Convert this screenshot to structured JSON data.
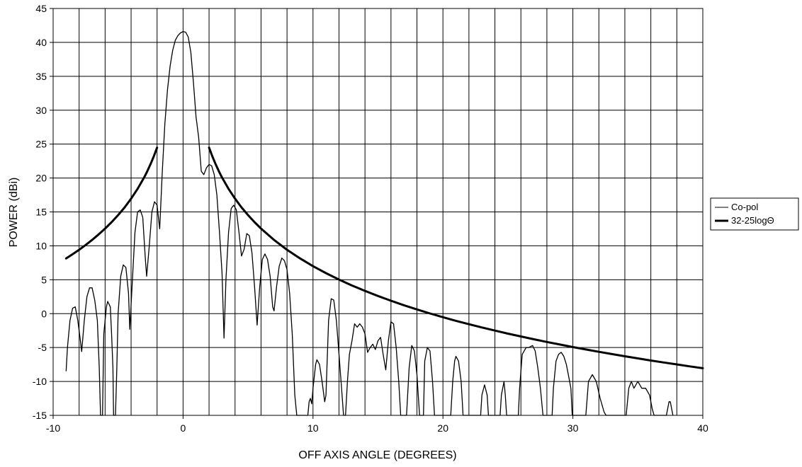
{
  "chart_data": {
    "type": "line",
    "title": "",
    "xlabel": "OFF AXIS ANGLE (DEGREES)",
    "ylabel": "POWER (dBi)",
    "xlim": [
      -10,
      40
    ],
    "ylim": [
      -15,
      45
    ],
    "x_ticks": [
      -10,
      0,
      10,
      20,
      30,
      40
    ],
    "y_ticks": [
      -15,
      -10,
      -5,
      0,
      5,
      10,
      15,
      20,
      25,
      30,
      35,
      40,
      45
    ],
    "x_gridlines": [
      -10,
      -8,
      -6,
      -4,
      -2,
      0,
      2,
      4,
      6,
      8,
      10,
      12,
      14,
      16,
      18,
      20,
      22,
      24,
      26,
      28,
      30,
      32,
      34,
      36,
      38,
      40
    ],
    "grid": true,
    "legend_position": "right",
    "series": [
      {
        "name": "Co-pol",
        "style": "thin",
        "color": "#000000",
        "points": [
          [
            -9.0,
            -8.5
          ],
          [
            -8.9,
            -5
          ],
          [
            -8.7,
            -1
          ],
          [
            -8.5,
            0.8
          ],
          [
            -8.3,
            1.0
          ],
          [
            -8.1,
            -1
          ],
          [
            -7.9,
            -4
          ],
          [
            -7.8,
            -5.6
          ],
          [
            -7.6,
            -1
          ],
          [
            -7.4,
            2.5
          ],
          [
            -7.2,
            3.8
          ],
          [
            -7.0,
            3.8
          ],
          [
            -6.8,
            2.0
          ],
          [
            -6.6,
            -1
          ],
          [
            -6.45,
            -8
          ],
          [
            -6.35,
            -15
          ],
          [
            -6.2,
            -15
          ],
          [
            -6.1,
            -3
          ],
          [
            -5.9,
            1.0
          ],
          [
            -5.8,
            1.8
          ],
          [
            -5.6,
            1.0
          ],
          [
            -5.5,
            -3
          ],
          [
            -5.4,
            -8
          ],
          [
            -5.35,
            -15
          ],
          [
            -5.2,
            -15
          ],
          [
            -5.1,
            -8
          ],
          [
            -5.0,
            0
          ],
          [
            -4.8,
            5.5
          ],
          [
            -4.6,
            7.2
          ],
          [
            -4.4,
            6.8
          ],
          [
            -4.2,
            3.0
          ],
          [
            -4.1,
            -2.3
          ],
          [
            -3.9,
            5
          ],
          [
            -3.7,
            12
          ],
          [
            -3.5,
            15.0
          ],
          [
            -3.3,
            15.3
          ],
          [
            -3.1,
            14.2
          ],
          [
            -2.9,
            8
          ],
          [
            -2.8,
            5.5
          ],
          [
            -2.6,
            10
          ],
          [
            -2.4,
            15
          ],
          [
            -2.2,
            16.5
          ],
          [
            -2.0,
            16.0
          ],
          [
            -1.8,
            12.5
          ],
          [
            -1.6,
            21
          ],
          [
            -1.4,
            28
          ],
          [
            -1.2,
            33
          ],
          [
            -1.0,
            36.5
          ],
          [
            -0.8,
            38.8
          ],
          [
            -0.6,
            40.3
          ],
          [
            -0.4,
            41.0
          ],
          [
            -0.2,
            41.4
          ],
          [
            0,
            41.6
          ],
          [
            0.2,
            41.5
          ],
          [
            0.4,
            40.8
          ],
          [
            0.6,
            38.5
          ],
          [
            0.8,
            34
          ],
          [
            1.0,
            29
          ],
          [
            1.2,
            26
          ],
          [
            1.4,
            21
          ],
          [
            1.6,
            20.5
          ],
          [
            1.8,
            21.5
          ],
          [
            2.0,
            22.0
          ],
          [
            2.2,
            21.8
          ],
          [
            2.4,
            20.5
          ],
          [
            2.6,
            17.5
          ],
          [
            2.8,
            12
          ],
          [
            3.0,
            6
          ],
          [
            3.15,
            -3.6
          ],
          [
            3.3,
            5
          ],
          [
            3.5,
            12
          ],
          [
            3.7,
            15.5
          ],
          [
            3.9,
            16.0
          ],
          [
            4.1,
            15.3
          ],
          [
            4.3,
            12
          ],
          [
            4.5,
            8.5
          ],
          [
            4.7,
            9.5
          ],
          [
            4.9,
            11.8
          ],
          [
            5.1,
            11.5
          ],
          [
            5.3,
            9
          ],
          [
            5.5,
            4
          ],
          [
            5.7,
            -1.7
          ],
          [
            5.9,
            4
          ],
          [
            6.1,
            8
          ],
          [
            6.3,
            8.8
          ],
          [
            6.5,
            8.0
          ],
          [
            6.7,
            5.5
          ],
          [
            6.9,
            1
          ],
          [
            7.0,
            0.4
          ],
          [
            7.2,
            4
          ],
          [
            7.4,
            7
          ],
          [
            7.6,
            8.2
          ],
          [
            7.8,
            7.8
          ],
          [
            8.0,
            6.5
          ],
          [
            8.2,
            3
          ],
          [
            8.4,
            -3
          ],
          [
            8.6,
            -12
          ],
          [
            8.75,
            -15
          ],
          [
            9.6,
            -15
          ],
          [
            9.7,
            -13
          ],
          [
            9.8,
            -12.5
          ],
          [
            9.9,
            -13.3
          ],
          [
            10.0,
            -11
          ],
          [
            10.2,
            -7.5
          ],
          [
            10.3,
            -6.8
          ],
          [
            10.5,
            -7.5
          ],
          [
            10.7,
            -10
          ],
          [
            10.9,
            -13
          ],
          [
            11.0,
            -12
          ],
          [
            11.2,
            -1
          ],
          [
            11.4,
            2.2
          ],
          [
            11.6,
            2.0
          ],
          [
            11.8,
            -1
          ],
          [
            12.0,
            -6
          ],
          [
            12.2,
            -11
          ],
          [
            12.35,
            -15
          ],
          [
            12.5,
            -15
          ],
          [
            12.65,
            -10
          ],
          [
            12.8,
            -6
          ],
          [
            13.0,
            -4
          ],
          [
            13.2,
            -1.5
          ],
          [
            13.4,
            -2.0
          ],
          [
            13.6,
            -1.5
          ],
          [
            13.8,
            -2.0
          ],
          [
            14.0,
            -3
          ],
          [
            14.2,
            -5.7
          ],
          [
            14.4,
            -5
          ],
          [
            14.6,
            -4.5
          ],
          [
            14.8,
            -5.3
          ],
          [
            15.0,
            -4
          ],
          [
            15.2,
            -3.5
          ],
          [
            15.4,
            -6
          ],
          [
            15.6,
            -8.3
          ],
          [
            15.8,
            -4
          ],
          [
            16.0,
            -1.2
          ],
          [
            16.2,
            -1.5
          ],
          [
            16.4,
            -5
          ],
          [
            16.6,
            -10
          ],
          [
            16.75,
            -15
          ],
          [
            17.2,
            -15
          ],
          [
            17.4,
            -8
          ],
          [
            17.6,
            -4.7
          ],
          [
            17.8,
            -5.5
          ],
          [
            18.0,
            -9
          ],
          [
            18.2,
            -15
          ],
          [
            18.5,
            -15
          ],
          [
            18.6,
            -7
          ],
          [
            18.8,
            -5
          ],
          [
            19.0,
            -5.5
          ],
          [
            19.2,
            -10
          ],
          [
            19.35,
            -15
          ],
          [
            20.6,
            -15
          ],
          [
            20.75,
            -10
          ],
          [
            20.9,
            -7
          ],
          [
            21.0,
            -6.3
          ],
          [
            21.2,
            -7
          ],
          [
            21.4,
            -10
          ],
          [
            21.55,
            -15
          ],
          [
            22.9,
            -15
          ],
          [
            23.0,
            -12
          ],
          [
            23.2,
            -10.5
          ],
          [
            23.4,
            -12
          ],
          [
            23.5,
            -15
          ],
          [
            24.4,
            -15
          ],
          [
            24.5,
            -12
          ],
          [
            24.7,
            -10
          ],
          [
            24.8,
            -12
          ],
          [
            24.9,
            -15
          ],
          [
            25.8,
            -15
          ],
          [
            25.9,
            -11
          ],
          [
            26.1,
            -6
          ],
          [
            26.4,
            -5
          ],
          [
            26.6,
            -5
          ],
          [
            26.9,
            -4.7
          ],
          [
            27.1,
            -5.5
          ],
          [
            27.3,
            -8
          ],
          [
            27.5,
            -11
          ],
          [
            27.7,
            -15
          ],
          [
            28.4,
            -15
          ],
          [
            28.5,
            -11
          ],
          [
            28.7,
            -7
          ],
          [
            28.9,
            -6
          ],
          [
            29.1,
            -5.7
          ],
          [
            29.3,
            -6.3
          ],
          [
            29.5,
            -7.5
          ],
          [
            29.7,
            -9.5
          ],
          [
            29.85,
            -11
          ],
          [
            29.95,
            -15
          ],
          [
            31.0,
            -15
          ],
          [
            31.2,
            -10
          ],
          [
            31.5,
            -9
          ],
          [
            31.8,
            -10
          ],
          [
            32.1,
            -12.5
          ],
          [
            32.4,
            -14.5
          ],
          [
            32.55,
            -15
          ],
          [
            34.1,
            -15
          ],
          [
            34.3,
            -11
          ],
          [
            34.5,
            -10
          ],
          [
            34.7,
            -11
          ],
          [
            35.0,
            -10
          ],
          [
            35.3,
            -11
          ],
          [
            35.6,
            -11
          ],
          [
            35.9,
            -12
          ],
          [
            36.1,
            -14
          ],
          [
            36.25,
            -15
          ],
          [
            37.2,
            -15
          ],
          [
            37.4,
            -13
          ],
          [
            37.5,
            -13
          ],
          [
            37.7,
            -15
          ]
        ]
      },
      {
        "name": "32-25logΘ",
        "style": "thick",
        "color": "#000000",
        "formula": "32-25log10(|x|)",
        "segments": [
          [
            [
              -9.0,
              8.14
            ],
            [
              -8.5,
              8.77
            ],
            [
              -8.0,
              9.42
            ],
            [
              -7.5,
              10.12
            ],
            [
              -7.0,
              10.87
            ],
            [
              -6.5,
              11.68
            ],
            [
              -6.0,
              12.55
            ],
            [
              -5.5,
              13.49
            ],
            [
              -5.0,
              14.53
            ],
            [
              -4.5,
              15.67
            ],
            [
              -4.0,
              16.95
            ],
            [
              -3.5,
              18.4
            ],
            [
              -3.0,
              20.07
            ],
            [
              -2.75,
              21.02
            ],
            [
              -2.5,
              22.05
            ],
            [
              -2.25,
              23.2
            ],
            [
              -2.0,
              24.47
            ]
          ],
          [
            [
              2.0,
              24.47
            ],
            [
              2.25,
              23.2
            ],
            [
              2.5,
              22.05
            ],
            [
              2.75,
              21.02
            ],
            [
              3.0,
              20.07
            ],
            [
              3.5,
              18.4
            ],
            [
              4.0,
              16.95
            ],
            [
              4.5,
              15.67
            ],
            [
              5.0,
              14.53
            ],
            [
              5.5,
              13.49
            ],
            [
              6.0,
              12.55
            ],
            [
              7.0,
              10.87
            ],
            [
              8.0,
              9.42
            ],
            [
              9.0,
              8.14
            ],
            [
              10.0,
              7.0
            ],
            [
              11.0,
              5.97
            ],
            [
              12.0,
              5.02
            ],
            [
              13.0,
              4.15
            ],
            [
              14.0,
              3.35
            ],
            [
              15.0,
              2.6
            ],
            [
              16.0,
              1.9
            ],
            [
              17.0,
              1.24
            ],
            [
              18.0,
              0.62
            ],
            [
              19.0,
              0.03
            ],
            [
              20.0,
              -0.53
            ],
            [
              21.0,
              -1.06
            ],
            [
              22.0,
              -1.56
            ],
            [
              23.0,
              -2.04
            ],
            [
              24.0,
              -2.5
            ],
            [
              25.0,
              -2.95
            ],
            [
              26.0,
              -3.37
            ],
            [
              27.0,
              -3.78
            ],
            [
              28.0,
              -4.18
            ],
            [
              29.0,
              -4.56
            ],
            [
              30.0,
              -4.93
            ],
            [
              31.0,
              -5.28
            ],
            [
              32.0,
              -5.63
            ],
            [
              33.0,
              -5.96
            ],
            [
              34.0,
              -6.29
            ],
            [
              35.0,
              -6.6
            ],
            [
              36.0,
              -6.91
            ],
            [
              37.0,
              -7.2
            ],
            [
              38.0,
              -7.49
            ],
            [
              39.0,
              -7.78
            ],
            [
              40.0,
              -8.05
            ]
          ]
        ]
      }
    ]
  }
}
